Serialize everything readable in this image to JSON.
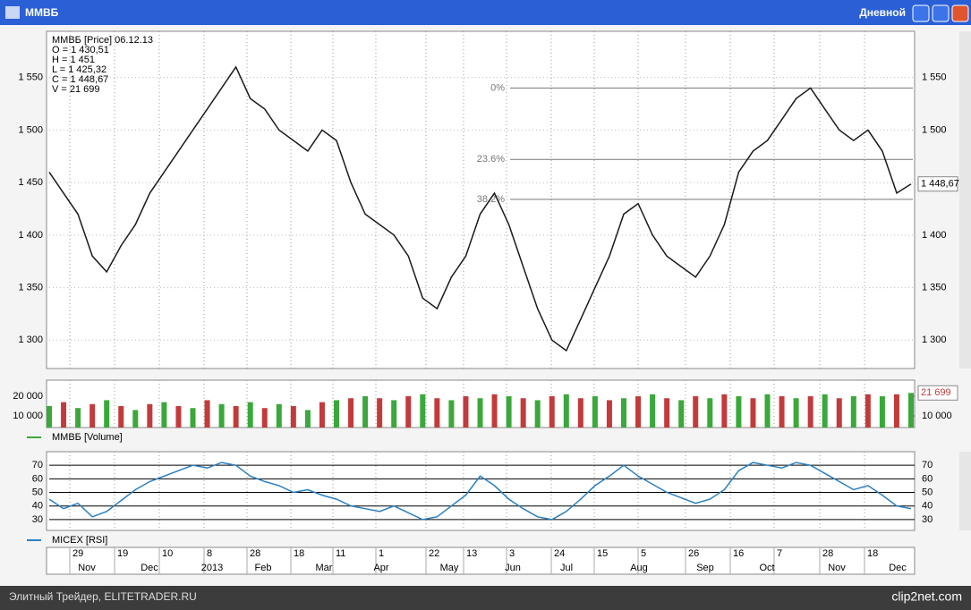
{
  "window": {
    "title": "ММВБ",
    "mode": "Дневной"
  },
  "chart_data": [
    {
      "type": "line",
      "legend": [
        "ММВБ [Price] 06.12.13",
        "O = 1 430,51",
        "H = 1 451",
        "L = 1 425,32",
        "C = 1 448,67",
        "V = 21 699"
      ],
      "series": [
        {
          "name": "ММВБ [Price]",
          "color": "#1a1a1a",
          "values": [
            1460,
            1440,
            1420,
            1380,
            1365,
            1390,
            1410,
            1440,
            1460,
            1480,
            1500,
            1520,
            1540,
            1560,
            1530,
            1520,
            1500,
            1490,
            1480,
            1500,
            1490,
            1450,
            1420,
            1410,
            1400,
            1380,
            1340,
            1330,
            1360,
            1380,
            1420,
            1440,
            1410,
            1370,
            1330,
            1300,
            1290,
            1320,
            1350,
            1380,
            1420,
            1430,
            1400,
            1380,
            1370,
            1360,
            1380,
            1410,
            1460,
            1480,
            1490,
            1510,
            1530,
            1540,
            1520,
            1500,
            1490,
            1500,
            1480,
            1440,
            1448.67
          ]
        }
      ],
      "ylim": [
        1273,
        1594
      ],
      "yticks": [
        {
          "value": 1300,
          "label": "1 300"
        },
        {
          "value": 1350,
          "label": "1 350"
        },
        {
          "value": 1400,
          "label": "1 400"
        },
        {
          "value": 1450,
          "label": "1 450"
        },
        {
          "value": 1500,
          "label": "1 500"
        },
        {
          "value": 1550,
          "label": "1 550"
        }
      ],
      "last": {
        "value": 1448.67,
        "label": "1 448,67"
      },
      "levels": [
        {
          "value": 1540,
          "label": "0%"
        },
        {
          "value": 1472,
          "label": "23.6%"
        },
        {
          "value": 1434,
          "label": "38.2%"
        }
      ],
      "grid": true
    },
    {
      "type": "bar",
      "legend": "ММВБ [Volume]",
      "series": [
        {
          "name": "ММВБ [Volume]",
          "color": "#3aa83a",
          "values": [
            15000,
            17000,
            14000,
            16000,
            18000,
            15000,
            13000,
            16000,
            17000,
            15000,
            14000,
            18000,
            16000,
            15000,
            17000,
            14000,
            16000,
            15000,
            13000,
            17000,
            18000,
            19000,
            20000,
            19000,
            18000,
            20000,
            21000,
            19000,
            18000,
            20000,
            19000,
            21000,
            20000,
            19000,
            18000,
            20000,
            21000,
            19000,
            20000,
            18000,
            19000,
            20000,
            21000,
            19000,
            18000,
            20000,
            19000,
            21000,
            20000,
            19000,
            21000,
            20000,
            19000,
            20000,
            21000,
            19000,
            20000,
            21000,
            20000,
            21000,
            21699
          ]
        }
      ],
      "ylim": [
        4100,
        28200
      ],
      "yticks": [
        {
          "value": 10000,
          "label": "10 000"
        },
        {
          "value": 20000,
          "label": "20 000"
        }
      ],
      "last": {
        "value": 21699,
        "label": "21 699"
      }
    },
    {
      "type": "line",
      "legend": "MICEX [RSI]",
      "series": [
        {
          "name": "MICEX [RSI]",
          "color": "#2a7fc0",
          "values": [
            45,
            38,
            42,
            32,
            36,
            44,
            52,
            58,
            62,
            66,
            70,
            68,
            72,
            70,
            62,
            58,
            55,
            50,
            52,
            48,
            45,
            40,
            38,
            36,
            40,
            35,
            30,
            32,
            40,
            48,
            62,
            55,
            45,
            38,
            32,
            30,
            36,
            45,
            55,
            62,
            70,
            62,
            56,
            50,
            46,
            42,
            45,
            52,
            66,
            72,
            70,
            68,
            72,
            70,
            64,
            58,
            52,
            55,
            48,
            40,
            38
          ]
        }
      ],
      "ylim": [
        22,
        80
      ],
      "yticks": [
        30,
        40,
        50,
        60,
        70
      ],
      "grid": true
    }
  ],
  "x_axis": {
    "days": [
      "29",
      "19",
      "10",
      "8",
      "28",
      "18",
      "11",
      "1",
      "22",
      "13",
      "3",
      "24",
      "15",
      "5",
      "26",
      "16",
      "7",
      "28",
      "18"
    ],
    "months": [
      "Nov",
      "Dec",
      "2013",
      "Feb",
      "Mar",
      "Apr",
      "May",
      "Jun",
      "Jul",
      "Aug",
      "Sep",
      "Oct",
      "Nov",
      "Dec"
    ]
  },
  "footer": {
    "left": "Элитный Трейдер, ELITETRADER.RU",
    "right": "clip2net.com"
  }
}
